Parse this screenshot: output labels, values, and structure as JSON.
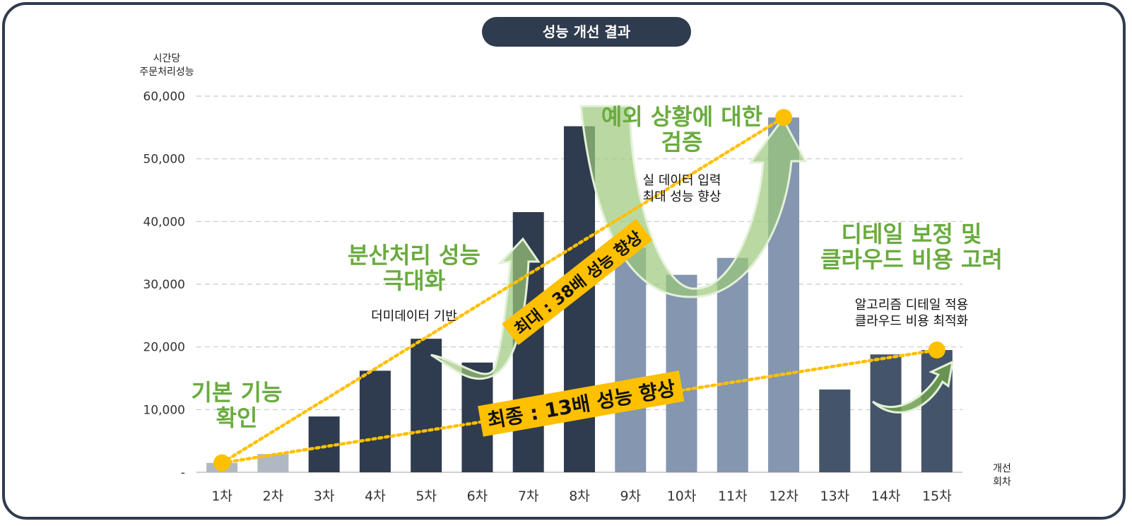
{
  "chart_data": {
    "type": "bar",
    "title": "성능 개선 결과",
    "ylabel": "시간당\n주문처리성능",
    "xlabel": "개선\n회차",
    "ylim": [
      0,
      60000
    ],
    "yticks": [
      0,
      10000,
      20000,
      30000,
      40000,
      50000,
      60000
    ],
    "ytick_labels": [
      "-",
      "10,000",
      "20,000",
      "30,000",
      "40,000",
      "50,000",
      "60,000"
    ],
    "grid": true,
    "categories": [
      "1차",
      "2차",
      "3차",
      "4차",
      "5차",
      "6차",
      "7차",
      "8차",
      "9차",
      "10차",
      "11차",
      "12차",
      "13차",
      "14차",
      "15차"
    ],
    "values": [
      1500,
      2900,
      8900,
      16200,
      21300,
      17500,
      41500,
      55200,
      35800,
      31500,
      34200,
      56600,
      13200,
      18800,
      19500
    ],
    "bar_colors": [
      "#b0b8c4",
      "#b0b8c4",
      "#2f3b4e",
      "#2f3b4e",
      "#2f3b4e",
      "#2f3b4e",
      "#2f3b4e",
      "#2f3b4e",
      "#8496b0",
      "#8496b0",
      "#8496b0",
      "#8496b0",
      "#44546a",
      "#44546a",
      "#44546a"
    ],
    "trend_lines": [
      {
        "from": "1차",
        "to": "12차",
        "from_value": 1500,
        "to_value": 56600,
        "label": "최대 : 38배 성능 향상",
        "color": "#ffc000"
      },
      {
        "from": "1차",
        "to": "15차",
        "from_value": 1500,
        "to_value": 19500,
        "label": "최종 : 13배 성능 향상",
        "color": "#ffc000"
      }
    ],
    "annotations": [
      {
        "heading": "기본 기능\n확인"
      },
      {
        "heading": "분산처리 성능\n극대화",
        "note": "더미데이터 기반"
      },
      {
        "heading": "예외 상황에 대한\n검증",
        "note": "실 데이터 입력\n최대 성능 향상"
      },
      {
        "heading": "디테일 보정 및\n클라우드 비용 고려",
        "note": "알고리즘 디테일 적용\n클라우드 비용 최적화"
      }
    ],
    "colors": {
      "arrow_fill": "#9cc97a",
      "arrow_stroke": "#e4f1d9",
      "heading": "#6aab3f",
      "banner": "#ffc000"
    }
  }
}
